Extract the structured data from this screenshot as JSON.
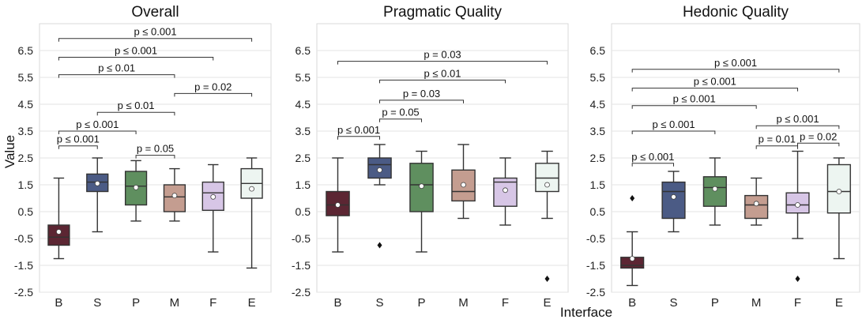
{
  "chart_data": [
    {
      "type": "box",
      "title": "Overall",
      "xlabel": "Interface",
      "ylabel": "Value",
      "ylim": [
        -2.5,
        7.5
      ],
      "yticks": [
        "-2.5",
        "-1.5",
        "-0.5",
        "0.5",
        "1.5",
        "2.5",
        "3.5",
        "4.5",
        "5.5",
        "6.5"
      ],
      "categories": [
        "B",
        "S",
        "P",
        "M",
        "F",
        "E"
      ],
      "boxes": [
        {
          "cat": "B",
          "whislo": -1.25,
          "q1": -0.75,
          "med": -0.45,
          "q3": 0.0,
          "whishi": 1.75,
          "mean": -0.25,
          "fliers": []
        },
        {
          "cat": "S",
          "whislo": -0.25,
          "q1": 1.25,
          "med": 1.6,
          "q3": 1.9,
          "whishi": 2.5,
          "mean": 1.55,
          "fliers": []
        },
        {
          "cat": "P",
          "whislo": 0.15,
          "q1": 0.75,
          "med": 1.45,
          "q3": 2.0,
          "whishi": 2.4,
          "mean": 1.4,
          "fliers": []
        },
        {
          "cat": "M",
          "whislo": 0.15,
          "q1": 0.5,
          "med": 1.05,
          "q3": 1.5,
          "whishi": 2.1,
          "mean": 1.1,
          "fliers": []
        },
        {
          "cat": "F",
          "whislo": -1.0,
          "q1": 0.55,
          "med": 1.2,
          "q3": 1.6,
          "whishi": 2.25,
          "mean": 1.05,
          "fliers": []
        },
        {
          "cat": "E",
          "whislo": -1.6,
          "q1": 1.0,
          "med": 1.55,
          "q3": 2.1,
          "whishi": 2.5,
          "mean": 1.35,
          "fliers": []
        }
      ],
      "significance": [
        {
          "from": "B",
          "to": "S",
          "y": 2.95,
          "label": "p ≤ 0.001"
        },
        {
          "from": "P",
          "to": "M",
          "y": 2.6,
          "label": "p = 0.05"
        },
        {
          "from": "B",
          "to": "P",
          "y": 3.5,
          "label": "p ≤ 0.001"
        },
        {
          "from": "S",
          "to": "M",
          "y": 4.2,
          "label": "p ≤ 0.01"
        },
        {
          "from": "M",
          "to": "E",
          "y": 4.9,
          "label": "p = 0.02"
        },
        {
          "from": "B",
          "to": "M",
          "y": 5.6,
          "label": "p ≤ 0.01"
        },
        {
          "from": "B",
          "to": "F",
          "y": 6.25,
          "label": "p ≤ 0.001"
        },
        {
          "from": "B",
          "to": "E",
          "y": 6.95,
          "label": "p ≤ 0.001"
        }
      ]
    },
    {
      "type": "box",
      "title": "Pragmatic Quality",
      "xlabel": "",
      "ylabel": "",
      "ylim": [
        -2.5,
        7.5
      ],
      "yticks": [
        "-2.5",
        "-1.5",
        "-0.5",
        "0.5",
        "1.5",
        "2.5",
        "3.5",
        "4.5",
        "5.5",
        "6.5"
      ],
      "categories": [
        "B",
        "S",
        "P",
        "M",
        "F",
        "E"
      ],
      "boxes": [
        {
          "cat": "B",
          "whislo": -1.0,
          "q1": 0.35,
          "med": 0.75,
          "q3": 1.25,
          "whishi": 2.5,
          "mean": 0.75,
          "fliers": []
        },
        {
          "cat": "S",
          "whislo": 1.5,
          "q1": 1.75,
          "med": 2.25,
          "q3": 2.5,
          "whishi": 3.0,
          "mean": 2.05,
          "fliers": [
            -0.75
          ]
        },
        {
          "cat": "P",
          "whislo": -1.0,
          "q1": 0.5,
          "med": 1.5,
          "q3": 2.3,
          "whishi": 2.75,
          "mean": 1.45,
          "fliers": []
        },
        {
          "cat": "M",
          "whislo": 0.25,
          "q1": 0.9,
          "med": 1.25,
          "q3": 2.05,
          "whishi": 3.0,
          "mean": 1.5,
          "fliers": []
        },
        {
          "cat": "F",
          "whislo": 0.0,
          "q1": 0.7,
          "med": 1.6,
          "q3": 1.75,
          "whishi": 2.5,
          "mean": 1.3,
          "fliers": []
        },
        {
          "cat": "E",
          "whislo": 0.25,
          "q1": 1.25,
          "med": 1.75,
          "q3": 2.3,
          "whishi": 2.75,
          "mean": 1.5,
          "fliers": [
            -2.0
          ]
        }
      ],
      "significance": [
        {
          "from": "B",
          "to": "S",
          "y": 3.3,
          "label": "p ≤ 0.001"
        },
        {
          "from": "S",
          "to": "P",
          "y": 3.95,
          "label": "p = 0.05"
        },
        {
          "from": "S",
          "to": "M",
          "y": 4.65,
          "label": "p = 0.03"
        },
        {
          "from": "S",
          "to": "F",
          "y": 5.4,
          "label": "p ≤ 0.01"
        },
        {
          "from": "B",
          "to": "E",
          "y": 6.1,
          "label": "p = 0.03"
        }
      ]
    },
    {
      "type": "box",
      "title": "Hedonic Quality",
      "xlabel": "",
      "ylabel": "",
      "ylim": [
        -2.5,
        7.5
      ],
      "yticks": [
        "-2.5",
        "-1.5",
        "-0.5",
        "0.5",
        "1.5",
        "2.5",
        "3.5",
        "4.5",
        "5.5",
        "6.5"
      ],
      "categories": [
        "B",
        "S",
        "P",
        "M",
        "F",
        "E"
      ],
      "boxes": [
        {
          "cat": "B",
          "whislo": -2.25,
          "q1": -1.6,
          "med": -1.5,
          "q3": -1.2,
          "whishi": -0.25,
          "mean": -1.25,
          "fliers": [
            1.0
          ]
        },
        {
          "cat": "S",
          "whislo": -0.25,
          "q1": 0.25,
          "med": 1.25,
          "q3": 1.6,
          "whishi": 2.0,
          "mean": 1.05,
          "fliers": []
        },
        {
          "cat": "P",
          "whislo": 0.0,
          "q1": 0.7,
          "med": 1.4,
          "q3": 1.8,
          "whishi": 2.5,
          "mean": 1.35,
          "fliers": []
        },
        {
          "cat": "M",
          "whislo": 0.0,
          "q1": 0.25,
          "med": 0.75,
          "q3": 1.1,
          "whishi": 1.75,
          "mean": 0.8,
          "fliers": []
        },
        {
          "cat": "F",
          "whislo": -0.5,
          "q1": 0.45,
          "med": 0.75,
          "q3": 1.2,
          "whishi": 2.75,
          "mean": 0.75,
          "fliers": [
            -2.0
          ]
        },
        {
          "cat": "E",
          "whislo": -1.25,
          "q1": 0.45,
          "med": 1.25,
          "q3": 2.25,
          "whishi": 2.5,
          "mean": 1.25,
          "fliers": []
        }
      ],
      "significance": [
        {
          "from": "B",
          "to": "S",
          "y": 2.3,
          "label": "p ≤ 0.001"
        },
        {
          "from": "M",
          "to": "F",
          "y": 2.95,
          "label": "p = 0.01"
        },
        {
          "from": "F",
          "to": "E",
          "y": 3.05,
          "label": "p = 0.02"
        },
        {
          "from": "B",
          "to": "P",
          "y": 3.5,
          "label": "p ≤ 0.001"
        },
        {
          "from": "M",
          "to": "E",
          "y": 3.7,
          "label": "p ≤ 0.001"
        },
        {
          "from": "B",
          "to": "M",
          "y": 4.45,
          "label": "p ≤ 0.001"
        },
        {
          "from": "B",
          "to": "F",
          "y": 5.1,
          "label": "p ≤ 0.001"
        },
        {
          "from": "B",
          "to": "E",
          "y": 5.8,
          "label": "p ≤ 0.001"
        }
      ]
    }
  ],
  "colors": {
    "B": "#5c2633",
    "S": "#4b5b85",
    "P": "#5f8f5f",
    "M": "#c49d90",
    "F": "#d7c6e6",
    "E": "#edf5f1"
  }
}
